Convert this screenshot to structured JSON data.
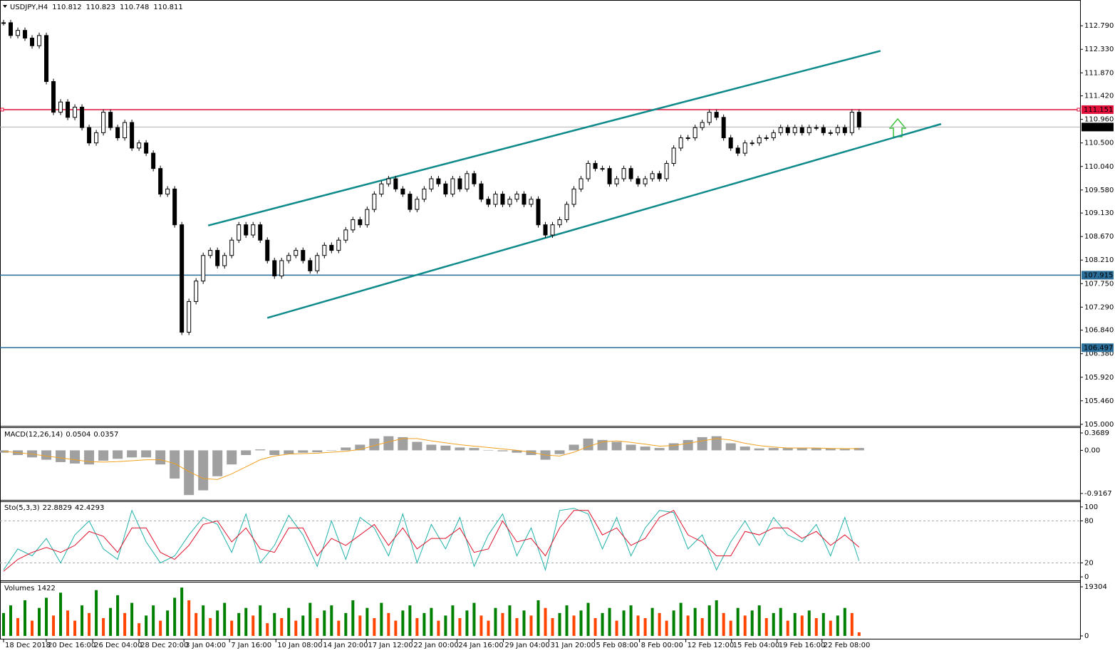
{
  "chart_data": [
    {
      "type": "candlestick",
      "symbol": "USDJPY,H4",
      "ohlc": [
        110.812,
        110.823,
        110.748,
        110.811
      ],
      "closes": [
        112.85,
        112.6,
        112.7,
        112.55,
        112.4,
        112.6,
        111.7,
        111.1,
        111.3,
        111.0,
        111.2,
        110.8,
        110.5,
        110.7,
        111.1,
        110.8,
        110.6,
        110.9,
        110.4,
        110.5,
        110.3,
        110.0,
        109.5,
        109.6,
        108.9,
        106.8,
        107.4,
        107.8,
        108.3,
        108.4,
        108.1,
        108.3,
        108.6,
        108.9,
        108.7,
        108.9,
        108.6,
        108.2,
        107.9,
        108.2,
        108.3,
        108.4,
        108.2,
        108.0,
        108.3,
        108.5,
        108.4,
        108.6,
        108.8,
        109.0,
        108.9,
        109.2,
        109.5,
        109.7,
        109.8,
        109.6,
        109.5,
        109.2,
        109.4,
        109.6,
        109.8,
        109.7,
        109.5,
        109.8,
        109.6,
        109.9,
        109.7,
        109.4,
        109.3,
        109.5,
        109.3,
        109.4,
        109.5,
        109.3,
        109.4,
        108.9,
        108.7,
        108.9,
        109.0,
        109.3,
        109.6,
        109.8,
        110.1,
        110.0,
        110.0,
        109.7,
        109.8,
        110.0,
        109.8,
        109.7,
        109.8,
        109.9,
        109.8,
        110.1,
        110.4,
        110.6,
        110.6,
        110.8,
        110.9,
        111.1,
        111.0,
        110.6,
        110.4,
        110.3,
        110.5,
        110.5,
        110.6,
        110.6,
        110.7,
        110.8,
        110.7,
        110.8,
        110.7,
        110.8,
        110.8,
        110.7,
        110.7,
        110.8,
        110.7,
        111.1,
        110.811
      ],
      "xlim": [
        -0.5,
        151
      ],
      "ylim": [
        104.97,
        113.28
      ],
      "xticks": [
        {
          "value": 0,
          "label": "18 Dec 2018"
        },
        {
          "value": 6,
          "label": "20 Dec 16:00"
        },
        {
          "value": 12.5,
          "label": "26 Dec 04:00"
        },
        {
          "value": 19,
          "label": "28 Dec 20:00"
        },
        {
          "value": 25.3,
          "label": "3 Jan 04:00"
        },
        {
          "value": 31.7,
          "label": "7 Jan 16:00"
        },
        {
          "value": 38.2,
          "label": "10 Jan 08:00"
        },
        {
          "value": 44.6,
          "label": "14 Jan 20:00"
        },
        {
          "value": 50.9,
          "label": "17 Jan 12:00"
        },
        {
          "value": 57.3,
          "label": "22 Jan 00:00"
        },
        {
          "value": 63.6,
          "label": "24 Jan 16:00"
        },
        {
          "value": 70.1,
          "label": "29 Jan 04:00"
        },
        {
          "value": 76.5,
          "label": "31 Jan 20:00"
        },
        {
          "value": 82.9,
          "label": "5 Feb 08:00"
        },
        {
          "value": 89.2,
          "label": "8 Feb 00:00"
        },
        {
          "value": 95.7,
          "label": "12 Feb 12:00"
        },
        {
          "value": 102.1,
          "label": "15 Feb 04:00"
        },
        {
          "value": 108.5,
          "label": "19 Feb 16:00"
        },
        {
          "value": 114.8,
          "label": "22 Feb 08:00"
        }
      ],
      "yticks": [
        {
          "value": 112.79,
          "label": "112.790"
        },
        {
          "value": 112.33,
          "label": "112.330"
        },
        {
          "value": 111.87,
          "label": "111.870"
        },
        {
          "value": 111.42,
          "label": "111.420"
        },
        {
          "value": 110.96,
          "label": "110.960"
        },
        {
          "value": 110.5,
          "label": "110.500"
        },
        {
          "value": 110.04,
          "label": "110.040"
        },
        {
          "value": 109.58,
          "label": "109.580"
        },
        {
          "value": 109.13,
          "label": "109.130"
        },
        {
          "value": 108.67,
          "label": "108.670"
        },
        {
          "value": 108.21,
          "label": "108.210"
        },
        {
          "value": 107.75,
          "label": "107.750"
        },
        {
          "value": 107.29,
          "label": "107.290"
        },
        {
          "value": 106.84,
          "label": "106.840"
        },
        {
          "value": 106.38,
          "label": "106.380"
        },
        {
          "value": 105.92,
          "label": "105.920"
        },
        {
          "value": 105.46,
          "label": "105.460"
        },
        {
          "value": 105.0,
          "label": "105.000"
        }
      ],
      "levels": [
        {
          "value": 111.151,
          "color": "#e0103a"
        },
        {
          "value": 110.811,
          "color": "#b0b0b0"
        },
        {
          "value": 107.915,
          "color": "#2b6e99"
        },
        {
          "value": 106.497,
          "color": "#2b6e99"
        }
      ],
      "trendlines": [
        {
          "x": [
            28.7,
            123
          ],
          "y": [
            108.886,
            112.3
          ],
          "color": "#0e8a8a"
        },
        {
          "x": [
            37,
            131.5
          ],
          "y": [
            107.08,
            110.87
          ],
          "color": "#0e8a8a"
        }
      ]
    },
    {
      "type": "macd",
      "name": "MACD(12,26,14)",
      "values": [
        -0.05,
        -0.1,
        -0.15,
        -0.2,
        -0.25,
        -0.28,
        -0.3,
        -0.22,
        -0.18,
        -0.15,
        -0.15,
        -0.3,
        -0.6,
        -0.95,
        -0.85,
        -0.55,
        -0.3,
        -0.1,
        0.02,
        -0.1,
        -0.08,
        -0.05,
        -0.04,
        0,
        0.06,
        0.12,
        0.25,
        0.3,
        0.28,
        0.18,
        0.12,
        0.1,
        0.06,
        0.05,
        0,
        -0.02,
        -0.05,
        -0.1,
        -0.2,
        -0.08,
        0.12,
        0.25,
        0.22,
        0.18,
        0.12,
        0.08,
        0.05,
        0.15,
        0.22,
        0.28,
        0.3,
        0.15,
        0.08,
        0.04,
        0.05,
        0.05,
        0.05,
        0.05,
        0.04,
        0.03,
        0.0504
      ],
      "signal": [
        -0.02,
        -0.05,
        -0.08,
        -0.12,
        -0.16,
        -0.2,
        -0.24,
        -0.25,
        -0.24,
        -0.22,
        -0.2,
        -0.2,
        -0.28,
        -0.45,
        -0.6,
        -0.62,
        -0.5,
        -0.35,
        -0.2,
        -0.12,
        -0.08,
        -0.07,
        -0.06,
        -0.04,
        -0.02,
        0.02,
        0.1,
        0.18,
        0.25,
        0.25,
        0.2,
        0.16,
        0.12,
        0.09,
        0.06,
        0.03,
        0,
        -0.04,
        -0.1,
        -0.12,
        -0.04,
        0.08,
        0.18,
        0.2,
        0.17,
        0.13,
        0.09,
        0.1,
        0.15,
        0.2,
        0.25,
        0.22,
        0.15,
        0.1,
        0.07,
        0.05,
        0.05,
        0.05,
        0.04,
        0.036,
        0.0357
      ],
      "color": "#a0a0a0",
      "signal_color": "#f0a020",
      "ylim": [
        -1.053,
        0.475
      ],
      "yticks": [
        0.3689,
        {
          "value": 0,
          "label": "0.00"
        },
        -0.9167
      ]
    },
    {
      "type": "stochastic",
      "name": "Sto(5,3,3)",
      "values": [
        10,
        40,
        30,
        55,
        20,
        60,
        80,
        40,
        25,
        95,
        50,
        20,
        30,
        60,
        85,
        75,
        35,
        90,
        20,
        45,
        88,
        60,
        15,
        80,
        25,
        85,
        70,
        30,
        90,
        20,
        75,
        40,
        85,
        15,
        60,
        90,
        30,
        70,
        10,
        95,
        98,
        90,
        40,
        85,
        30,
        70,
        95,
        92,
        40,
        60,
        10,
        50,
        80,
        45,
        85,
        60,
        50,
        75,
        30,
        85,
        22.8829
      ],
      "signal": [
        8,
        25,
        35,
        42,
        35,
        45,
        65,
        58,
        35,
        70,
        70,
        35,
        25,
        45,
        75,
        80,
        50,
        70,
        40,
        35,
        70,
        70,
        30,
        55,
        45,
        60,
        75,
        45,
        70,
        40,
        55,
        55,
        70,
        35,
        40,
        80,
        50,
        55,
        30,
        70,
        95,
        95,
        60,
        70,
        45,
        55,
        85,
        95,
        60,
        50,
        30,
        30,
        65,
        60,
        70,
        70,
        55,
        65,
        45,
        60,
        42.4293
      ],
      "color": "#20b2aa",
      "signal_color": "#e0102a",
      "ylim": [
        -5,
        107
      ],
      "yticks": [
        100,
        80,
        20,
        0
      ]
    },
    {
      "type": "volume",
      "name": "Volumes",
      "values": [
        9000,
        12000,
        7000,
        14000,
        6000,
        11000,
        15000,
        8000,
        17000,
        10000,
        6000,
        12000,
        9000,
        18000,
        7000,
        11000,
        16000,
        9000,
        13000,
        5000,
        8000,
        12000,
        6000,
        10000,
        15000,
        19000,
        14000,
        9000,
        12000,
        7000,
        10000,
        13000,
        6000,
        9000,
        11000,
        8000,
        12000,
        5000,
        9000,
        7000,
        11000,
        6000,
        8000,
        13000,
        7000,
        10000,
        12000,
        6000,
        9000,
        14000,
        8000,
        11000,
        7000,
        13000,
        9000,
        6000,
        10000,
        12000,
        7000,
        9000,
        11000,
        6000,
        8000,
        12000,
        7000,
        10000,
        13000,
        8000,
        6000,
        11000,
        9000,
        12000,
        7000,
        10000,
        8000,
        14000,
        11000,
        7000,
        9000,
        12000,
        8000,
        10000,
        13000,
        7000,
        9000,
        11000,
        6000,
        10000,
        12000,
        8000,
        7000,
        11000,
        9000,
        6000,
        10000,
        13000,
        8000,
        11000,
        7000,
        12000,
        14000,
        9000,
        6000,
        11000,
        8000,
        10000,
        12000,
        7000,
        9000,
        11000,
        6000,
        9000,
        8000,
        10000,
        7000,
        9000,
        6000,
        8000,
        11000,
        9000,
        1422
      ],
      "up_color": "#008000",
      "down_color": "#ff4500",
      "ylim": [
        0,
        21000
      ],
      "yticks": [
        19304,
        0
      ]
    }
  ]
}
